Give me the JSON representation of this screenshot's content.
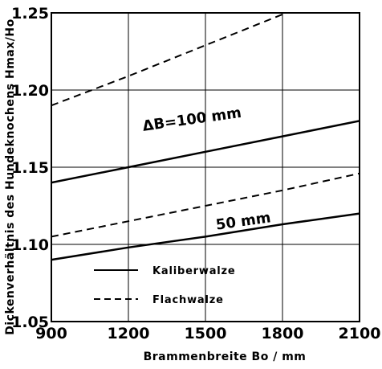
{
  "chart_data": {
    "type": "line",
    "title": "",
    "xlabel": "Brammenbreite Bo / mm",
    "ylabel": "Dickenverhältnis des Hundeknochens Hmax/Ho",
    "xlim": [
      900,
      2100
    ],
    "ylim": [
      1.05,
      1.25
    ],
    "x_ticks": [
      "900",
      "1200",
      "1500",
      "1800",
      "2100"
    ],
    "y_ticks": [
      "1.05",
      "1.10",
      "1.15",
      "1.20",
      "1.25"
    ],
    "grid": true,
    "legend": {
      "placement": "bottom-left",
      "entries": [
        {
          "label": "Kaliberwalze",
          "style": "solid"
        },
        {
          "label": "Flachwalze",
          "style": "dashed"
        }
      ]
    },
    "annotations": [
      {
        "text": "ΔB=100 mm",
        "x": 1450,
        "y": 1.178
      },
      {
        "text": "50 mm",
        "x": 1650,
        "y": 1.112
      }
    ],
    "series": [
      {
        "group": "ΔB=100 mm",
        "roll": "Flachwalze",
        "style": "dashed",
        "points": [
          [
            900,
            1.19
          ],
          [
            1200,
            1.209
          ],
          [
            1500,
            1.229
          ],
          [
            1800,
            1.249
          ],
          [
            1830,
            1.251
          ]
        ]
      },
      {
        "group": "ΔB=100 mm",
        "roll": "Kaliberwalze",
        "style": "solid",
        "points": [
          [
            900,
            1.14
          ],
          [
            1200,
            1.15
          ],
          [
            1500,
            1.16
          ],
          [
            1800,
            1.17
          ],
          [
            2100,
            1.18
          ]
        ]
      },
      {
        "group": "50 mm",
        "roll": "Flachwalze",
        "style": "dashed",
        "points": [
          [
            900,
            1.105
          ],
          [
            1200,
            1.115
          ],
          [
            1500,
            1.125
          ],
          [
            1800,
            1.135
          ],
          [
            2100,
            1.146
          ]
        ]
      },
      {
        "group": "50 mm",
        "roll": "Kaliberwalze",
        "style": "solid",
        "points": [
          [
            900,
            1.09
          ],
          [
            1200,
            1.098
          ],
          [
            1500,
            1.105
          ],
          [
            1800,
            1.113
          ],
          [
            2100,
            1.12
          ]
        ]
      }
    ]
  }
}
